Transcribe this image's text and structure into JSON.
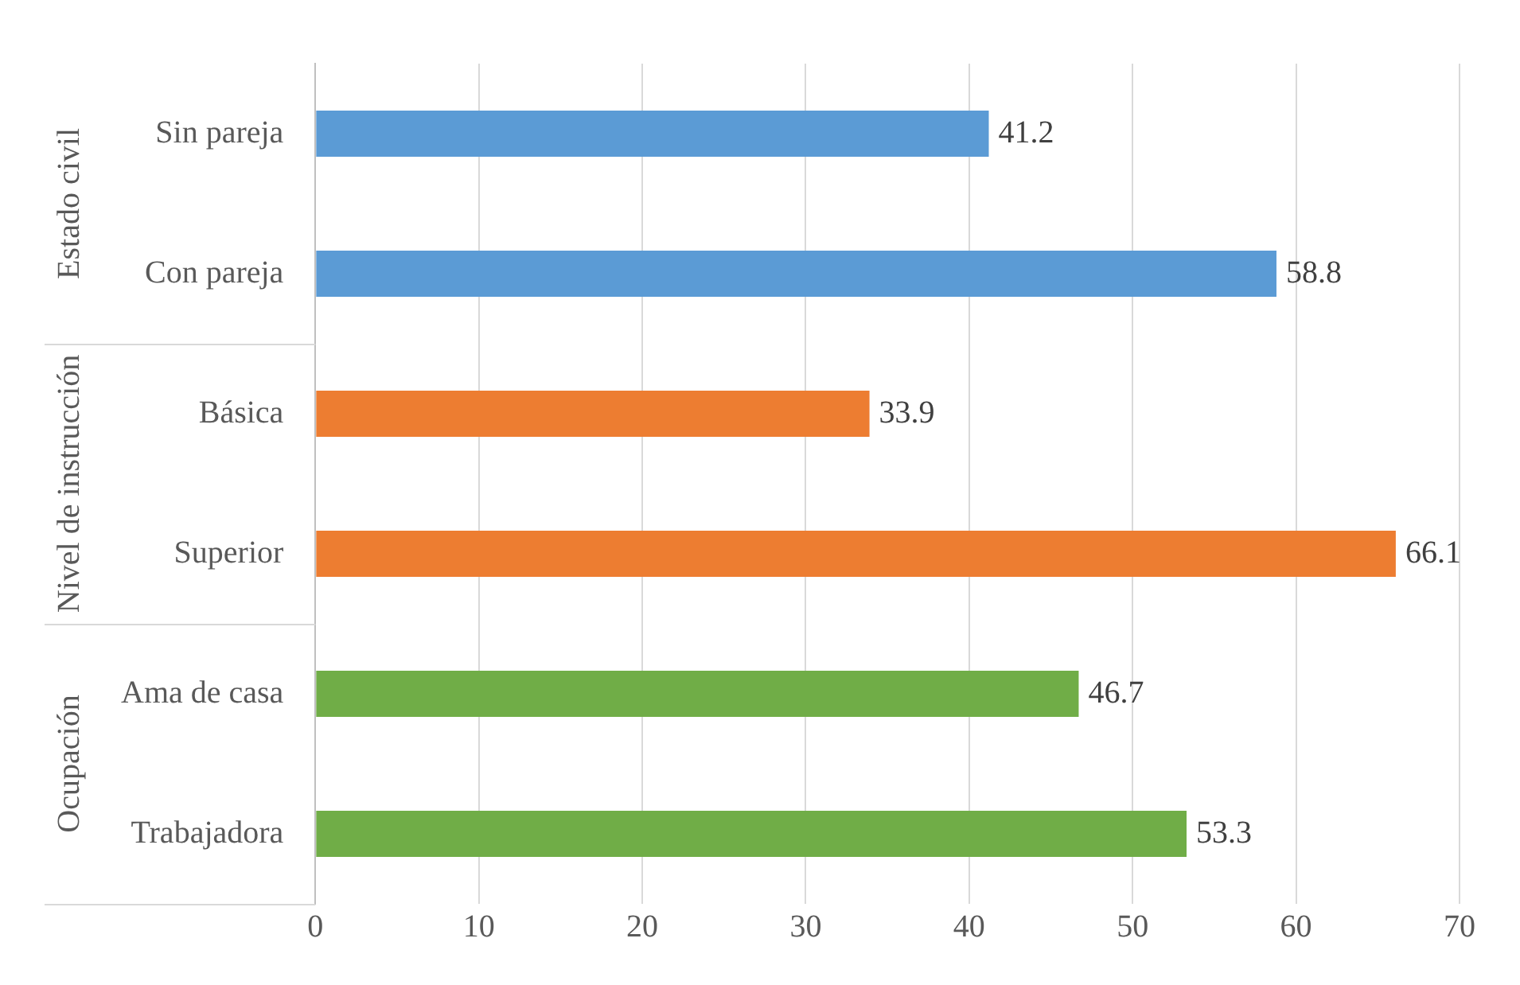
{
  "chart_data": {
    "type": "bar",
    "orientation": "horizontal",
    "categories": [
      "Sin pareja",
      "Con pareja",
      "Básica",
      "Superior",
      "Ama de casa",
      "Trabajadora"
    ],
    "values": [
      41.2,
      58.8,
      33.9,
      66.1,
      46.7,
      53.3
    ],
    "colors": [
      "#5b9bd5",
      "#5b9bd5",
      "#ed7d31",
      "#ed7d31",
      "#70ad47",
      "#70ad47"
    ],
    "annotations": [
      "Estado civil",
      "Nivel de instrucción",
      "Ocupación"
    ],
    "xlim": [
      0,
      70
    ],
    "xticks": [
      0,
      10,
      20,
      30,
      40,
      50,
      60,
      70
    ],
    "grid": "x",
    "data_labels": true,
    "legend": false
  }
}
